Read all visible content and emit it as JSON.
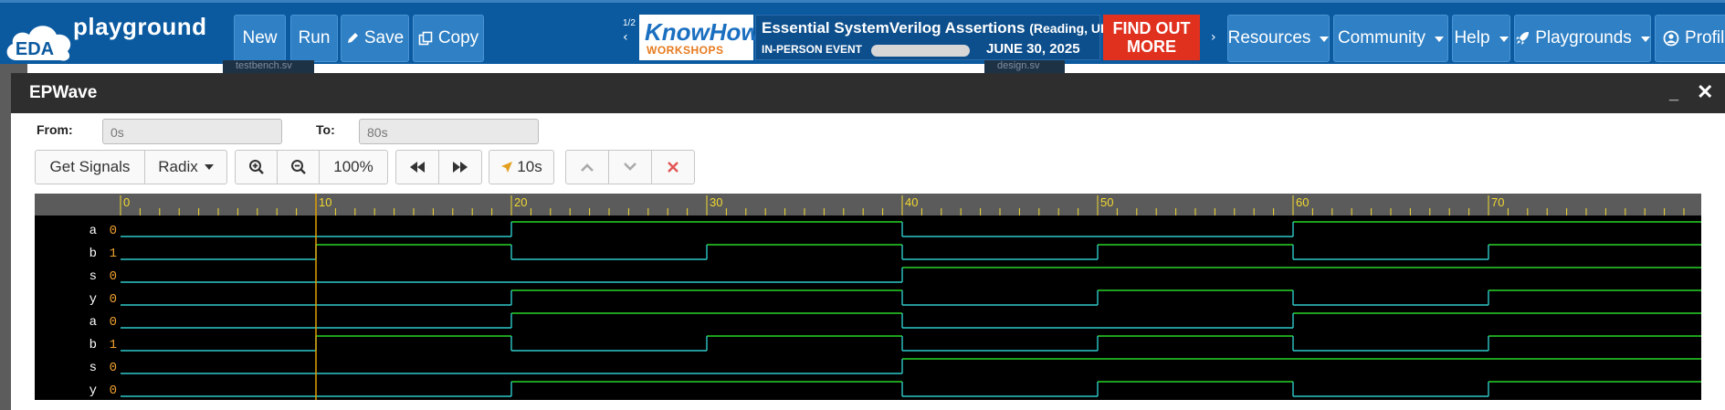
{
  "topnav": {
    "logo_text": "EDA",
    "brand": "playground",
    "buttons": {
      "new": "New",
      "run": "Run",
      "save": "Save",
      "copy": "Copy"
    },
    "ad": {
      "page": "1/2",
      "brand": "KnowHow",
      "brand_sub": "WORKSHOPS",
      "title": "Essential SystemVerilog Assertions",
      "title_loc": "(Reading, UK)",
      "event": "IN-PERSON EVENT",
      "date": "JUNE 30, 2025",
      "cta_line1": "FIND OUT",
      "cta_line2": "MORE"
    },
    "menus": {
      "resources": "Resources",
      "community": "Community",
      "help": "Help",
      "playgrounds": "Playgrounds",
      "profile": "Profile"
    }
  },
  "underlay": {
    "tab_left": "testbench.sv",
    "tab_right": "design.sv"
  },
  "epwave": {
    "title": "EPWave",
    "from_label": "From:",
    "from_value": "0s",
    "to_label": "To:",
    "to_value": "80s",
    "toolbar": {
      "get_signals": "Get Signals",
      "radix": "Radix",
      "zoom": "100%",
      "step": "10s"
    },
    "timeline": {
      "start": 0,
      "end": 87,
      "major_ticks": [
        0,
        10,
        20,
        30,
        40,
        50,
        60,
        70
      ],
      "cursor_time": 10
    },
    "signals": [
      {
        "name": "a",
        "value": "0",
        "transitions": [
          [
            0,
            0
          ],
          [
            20,
            1
          ],
          [
            40,
            0
          ],
          [
            60,
            1
          ]
        ]
      },
      {
        "name": "b",
        "value": "1",
        "transitions": [
          [
            0,
            0
          ],
          [
            10,
            1
          ],
          [
            20,
            0
          ],
          [
            30,
            1
          ],
          [
            40,
            0
          ],
          [
            50,
            1
          ],
          [
            60,
            0
          ],
          [
            70,
            1
          ]
        ]
      },
      {
        "name": "s",
        "value": "0",
        "transitions": [
          [
            0,
            0
          ],
          [
            40,
            1
          ]
        ]
      },
      {
        "name": "y",
        "value": "0",
        "transitions": [
          [
            0,
            0
          ],
          [
            20,
            1
          ],
          [
            40,
            0
          ],
          [
            50,
            1
          ],
          [
            60,
            0
          ],
          [
            70,
            1
          ]
        ]
      },
      {
        "name": "a",
        "value": "0",
        "transitions": [
          [
            0,
            0
          ],
          [
            20,
            1
          ],
          [
            40,
            0
          ],
          [
            60,
            1
          ]
        ]
      },
      {
        "name": "b",
        "value": "1",
        "transitions": [
          [
            0,
            0
          ],
          [
            10,
            1
          ],
          [
            20,
            0
          ],
          [
            30,
            1
          ],
          [
            40,
            0
          ],
          [
            50,
            1
          ],
          [
            60,
            0
          ],
          [
            70,
            1
          ]
        ]
      },
      {
        "name": "s",
        "value": "0",
        "transitions": [
          [
            0,
            0
          ],
          [
            40,
            1
          ]
        ]
      },
      {
        "name": "y",
        "value": "0",
        "transitions": [
          [
            0,
            0
          ],
          [
            20,
            1
          ],
          [
            40,
            0
          ],
          [
            50,
            1
          ],
          [
            60,
            0
          ],
          [
            70,
            1
          ]
        ]
      }
    ],
    "colors": {
      "low": "#2fc9c9",
      "high": "#29d629",
      "tick": "#f2d830",
      "cursor": "#e0a000",
      "value": "#f0a030"
    }
  }
}
